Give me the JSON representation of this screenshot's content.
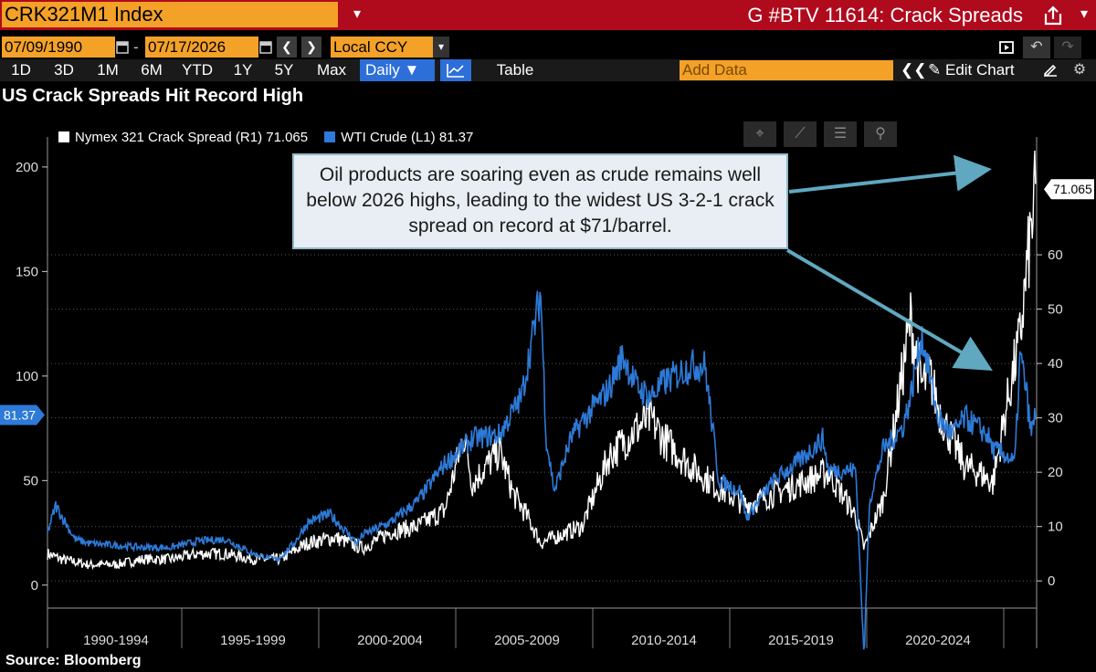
{
  "header": {
    "ticker": "CRK321M1 Index",
    "menu_icon": "caret-down-icon",
    "function_title": "G #BTV 11614: Crack Spreads",
    "share_icon": "share-icon"
  },
  "date_range": {
    "start": "07/09/1990",
    "end": "07/17/2026",
    "separator": "-",
    "currency": "Local CCY",
    "prev_icon": "chevron-left-icon",
    "next_icon": "chevron-right-icon"
  },
  "toolbar": {
    "ranges": [
      "1D",
      "3D",
      "1M",
      "6M",
      "YTD",
      "1Y",
      "5Y",
      "Max"
    ],
    "frequency": "Daily ▼",
    "table_label": "Table",
    "add_data_placeholder": "Add Data",
    "collapse_icon": "double-chevron-left-icon",
    "edit_chart_label": "Edit Chart"
  },
  "chart_tools": [
    "crosshair-icon",
    "draw-line-icon",
    "annotate-icon",
    "zoom-icon"
  ],
  "annotation": "Oil products are soaring even as crude remains well below 2026 highs, leading to the widest US 3-2-1 crack spread on record at $71/barrel.",
  "footer": {
    "source": "Source:  Bloomberg"
  },
  "chart_data": {
    "type": "line",
    "title": "US Crack Spreads Hit Record High",
    "x_categories": [
      "1990-1994",
      "1995-1999",
      "2000-2004",
      "2005-2009",
      "2010-2014",
      "2015-2019",
      "2020-2024"
    ],
    "x_range": [
      1990.5,
      2026.6
    ],
    "series": [
      {
        "name": "Nymex 321 Crack Spread (R1)",
        "legend_label": "Nymex 321 Crack Spread (R1) 71.065",
        "axis": "right",
        "color": "#ffffff",
        "last_value": 71.065,
        "last_label": "71.065",
        "x": [
          1990.5,
          1991,
          1992,
          1993,
          1994,
          1995,
          1996,
          1997,
          1998,
          1999,
          2000,
          2001,
          2002,
          2003,
          2004,
          2005,
          2005.7,
          2006,
          2007,
          2007.5,
          2008,
          2008.5,
          2009,
          2010,
          2011,
          2012,
          2012.5,
          2013,
          2014,
          2015,
          2016,
          2017,
          2018,
          2019,
          2020,
          2020.3,
          2021,
          2022,
          2022.4,
          2022.7,
          2023,
          2023.5,
          2024,
          2024.5,
          2025,
          2025.5,
          2026,
          2026.3,
          2026.55
        ],
        "y": [
          5,
          4,
          3,
          3,
          4,
          4,
          5,
          5,
          4,
          4,
          7,
          8,
          6,
          9,
          10,
          13,
          27,
          18,
          24,
          16,
          12,
          7,
          8,
          10,
          23,
          28,
          30,
          26,
          21,
          17,
          14,
          16,
          18,
          20,
          12,
          6,
          15,
          48,
          36,
          38,
          32,
          26,
          21,
          20,
          18,
          32,
          45,
          60,
          71
        ]
      },
      {
        "name": "WTI Crude (L1)",
        "legend_label": "WTI Crude (L1) 81.37",
        "axis": "left",
        "color": "#2d7ad8",
        "last_value": 81.37,
        "last_label": "81.37",
        "x": [
          1990.5,
          1990.8,
          1991.5,
          1992,
          1993,
          1994,
          1995,
          1996,
          1997,
          1998,
          1998.9,
          1999.5,
          2000,
          2000.8,
          2001.8,
          2002,
          2003,
          2004,
          2005,
          2006,
          2007,
          2007.8,
          2008.5,
          2008.7,
          2009,
          2009.6,
          2010,
          2011,
          2011.5,
          2012,
          2012.5,
          2013,
          2014,
          2014.5,
          2015,
          2015.8,
          2016,
          2017,
          2018,
          2018.8,
          2019,
          2020,
          2020.3,
          2020.5,
          2021,
          2021.7,
          2022,
          2022.4,
          2023,
          2023.5,
          2024,
          2024.8,
          2025,
          2025.5,
          2025.8,
          2026,
          2026.2,
          2026.4,
          2026.55
        ],
        "y": [
          25,
          38,
          22,
          20,
          19,
          18,
          18,
          21,
          22,
          15,
          12,
          20,
          30,
          34,
          20,
          24,
          30,
          40,
          58,
          70,
          72,
          90,
          140,
          70,
          45,
          70,
          78,
          94,
          110,
          95,
          90,
          97,
          105,
          105,
          50,
          45,
          32,
          50,
          60,
          70,
          55,
          55,
          -35,
          40,
          65,
          75,
          90,
          120,
          80,
          72,
          80,
          72,
          65,
          62,
          58,
          110,
          95,
          72,
          81.37
        ]
      }
    ],
    "y_left": {
      "label": "",
      "ticks": [
        0,
        50,
        100,
        150,
        200
      ],
      "range": [
        -11,
        210
      ]
    },
    "y_right": {
      "label": "",
      "ticks": [
        0,
        10,
        20,
        30,
        40,
        50,
        60
      ],
      "range": [
        -5,
        80
      ]
    },
    "grid": true,
    "legend_position": "top-left"
  }
}
